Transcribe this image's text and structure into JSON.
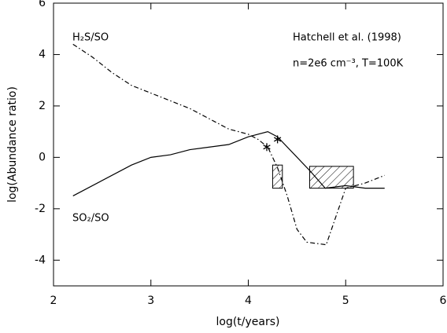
{
  "chart_data": {
    "type": "line",
    "xlabel": "log(t/years)",
    "ylabel": "log(Abundance ratio)",
    "annotations": [
      "H₂S/SO",
      "SO₂/SO",
      "Hatchell et al. (1998)",
      "n=2e6 cm⁻³, T=100K"
    ],
    "xlim": [
      2,
      6
    ],
    "ylim": [
      -5,
      6
    ],
    "xticks": [
      2,
      3,
      4,
      5,
      6
    ],
    "yticks": [
      -4,
      -2,
      0,
      2,
      4,
      6
    ],
    "series": [
      {
        "color": "#000000",
        "style": "solid",
        "x": [
          2.2,
          2.8,
          3.0,
          3.2,
          3.4,
          3.8,
          4.0,
          4.2,
          4.3,
          4.64,
          4.79,
          5.0,
          5.2,
          5.4
        ],
        "values": [
          -1.5,
          -0.3,
          0.0,
          0.1,
          0.3,
          0.5,
          0.8,
          1.0,
          0.8,
          -0.55,
          -1.2,
          -1.1,
          -1.2,
          -1.2
        ]
      },
      {
        "color": "#000000",
        "style": "dashdot",
        "x": [
          2.2,
          2.4,
          2.6,
          2.8,
          3.0,
          3.2,
          3.4,
          3.6,
          3.8,
          4.0,
          4.1,
          4.2,
          4.3,
          4.4,
          4.5,
          4.6,
          4.8,
          5.0,
          5.2,
          5.4
        ],
        "values": [
          4.4,
          3.9,
          3.3,
          2.8,
          2.5,
          2.2,
          1.9,
          1.5,
          1.1,
          0.9,
          0.7,
          0.4,
          -0.4,
          -1.5,
          -2.8,
          -3.3,
          -3.4,
          -1.2,
          -1.0,
          -0.7
        ]
      }
    ],
    "markers": {
      "x": [
        4.19,
        4.3
      ],
      "values": [
        0.4,
        0.7
      ]
    },
    "regions": [
      {
        "x": [
          4.25,
          4.35
        ],
        "y": [
          -1.2,
          -0.3
        ]
      },
      {
        "x": [
          4.63,
          5.08
        ],
        "y": [
          -1.2,
          -0.35
        ]
      }
    ]
  }
}
